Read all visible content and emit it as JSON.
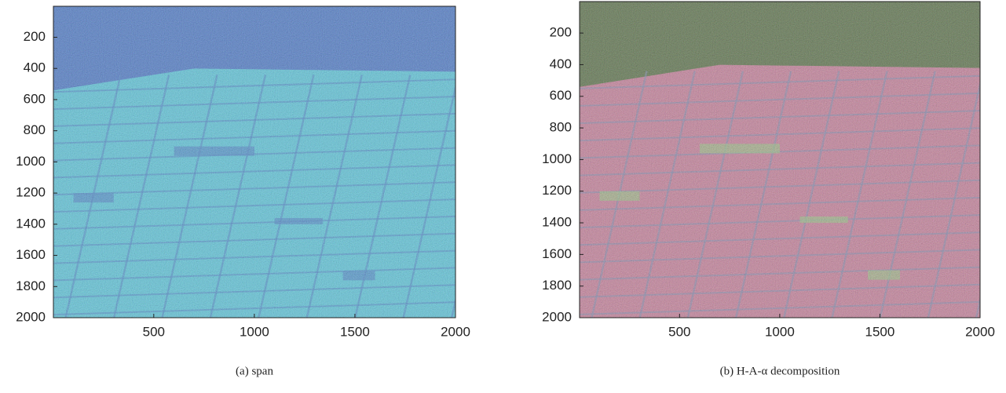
{
  "chart_data": [
    {
      "type": "image",
      "caption": "(a) span",
      "xlim": [
        1,
        2000
      ],
      "ylim": [
        1,
        2000
      ],
      "y_reversed": true,
      "xticks": [
        500,
        1000,
        1500,
        2000
      ],
      "yticks": [
        200,
        400,
        600,
        800,
        1000,
        1200,
        1400,
        1600,
        1800,
        2000
      ]
    },
    {
      "type": "image",
      "caption": "(b) H-A-α decomposition",
      "xlim": [
        1,
        2000
      ],
      "ylim": [
        1,
        2000
      ],
      "y_reversed": true,
      "xticks": [
        500,
        1000,
        1500,
        2000
      ],
      "yticks": [
        200,
        400,
        600,
        800,
        1000,
        1200,
        1400,
        1600,
        1800,
        2000
      ]
    }
  ]
}
